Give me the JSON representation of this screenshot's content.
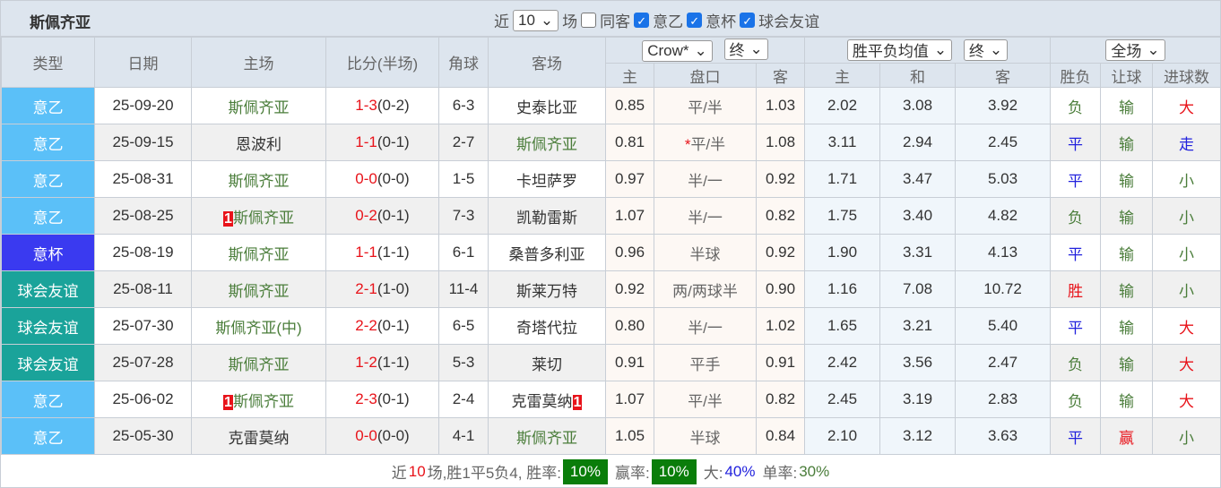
{
  "header": {
    "title": "斯佩齐亚",
    "recent_prefix": "近",
    "recent_value": "10",
    "recent_suffix": "场",
    "same_label": "同客",
    "filters": [
      {
        "label": "意乙",
        "checked": true
      },
      {
        "label": "意杯",
        "checked": true
      },
      {
        "label": "球会友谊",
        "checked": true
      }
    ]
  },
  "columns": {
    "type": "类型",
    "date": "日期",
    "home": "主场",
    "score": "比分(半场)",
    "corner": "角球",
    "away": "客场",
    "handicap_company": "Crow*",
    "handicap_stage": "终",
    "euro_company": "胜平负均值",
    "euro_stage": "终",
    "period": "全场",
    "sub": [
      "主",
      "盘口",
      "客",
      "主",
      "和",
      "客",
      "胜负",
      "让球",
      "进球数"
    ]
  },
  "colors": {
    "意乙": "#5bc0f8",
    "意杯": "#3a3af0",
    "球会友谊": "#1aa39a",
    "win": "#e8131a",
    "draw": "#2222dd",
    "loss": "#4a7d3a"
  },
  "rows": [
    {
      "type": "意乙",
      "date": "25-09-20",
      "home": "斯佩齐亚",
      "home_badge": "",
      "score": "1-3",
      "half": "(0-2)",
      "corner": "6-3",
      "away": "史泰比亚",
      "away_badge": "",
      "h1": "0.85",
      "line": "平/半",
      "h2": "1.03",
      "e1": "2.02",
      "e2": "3.08",
      "e3": "3.92",
      "res": "负",
      "ah": "输",
      "ou": "大"
    },
    {
      "type": "意乙",
      "date": "25-09-15",
      "home": "恩波利",
      "home_badge": "",
      "score": "1-1",
      "half": "(0-1)",
      "corner": "2-7",
      "away": "斯佩齐亚",
      "away_badge": "",
      "h1": "0.81",
      "line": "平/半",
      "star": "*",
      "h2": "1.08",
      "e1": "3.11",
      "e2": "2.94",
      "e3": "2.45",
      "res": "平",
      "ah": "输",
      "ou": "走"
    },
    {
      "type": "意乙",
      "date": "25-08-31",
      "home": "斯佩齐亚",
      "home_badge": "",
      "score": "0-0",
      "half": "(0-0)",
      "corner": "1-5",
      "away": "卡坦萨罗",
      "away_badge": "",
      "h1": "0.97",
      "line": "半/一",
      "h2": "0.92",
      "e1": "1.71",
      "e2": "3.47",
      "e3": "5.03",
      "res": "平",
      "ah": "输",
      "ou": "小"
    },
    {
      "type": "意乙",
      "date": "25-08-25",
      "home": "斯佩齐亚",
      "home_badge": "1",
      "score": "0-2",
      "half": "(0-1)",
      "corner": "7-3",
      "away": "凯勒雷斯",
      "away_badge": "",
      "h1": "1.07",
      "line": "半/一",
      "h2": "0.82",
      "e1": "1.75",
      "e2": "3.40",
      "e3": "4.82",
      "res": "负",
      "ah": "输",
      "ou": "小"
    },
    {
      "type": "意杯",
      "date": "25-08-19",
      "home": "斯佩齐亚",
      "home_badge": "",
      "score": "1-1",
      "half": "(1-1)",
      "corner": "6-1",
      "away": "桑普多利亚",
      "away_badge": "",
      "h1": "0.96",
      "line": "半球",
      "h2": "0.92",
      "e1": "1.90",
      "e2": "3.31",
      "e3": "4.13",
      "res": "平",
      "ah": "输",
      "ou": "小"
    },
    {
      "type": "球会友谊",
      "date": "25-08-11",
      "home": "斯佩齐亚",
      "home_badge": "",
      "score": "2-1",
      "half": "(1-0)",
      "corner": "11-4",
      "away": "斯莱万特",
      "away_badge": "",
      "h1": "0.92",
      "line": "两/两球半",
      "h2": "0.90",
      "e1": "1.16",
      "e2": "7.08",
      "e3": "10.72",
      "res": "胜",
      "ah": "输",
      "ou": "小"
    },
    {
      "type": "球会友谊",
      "date": "25-07-30",
      "home": "斯佩齐亚(中)",
      "home_badge": "",
      "score": "2-2",
      "half": "(0-1)",
      "corner": "6-5",
      "away": "奇塔代拉",
      "away_badge": "",
      "h1": "0.80",
      "line": "半/一",
      "h2": "1.02",
      "e1": "1.65",
      "e2": "3.21",
      "e3": "5.40",
      "res": "平",
      "ah": "输",
      "ou": "大"
    },
    {
      "type": "球会友谊",
      "date": "25-07-28",
      "home": "斯佩齐亚",
      "home_badge": "",
      "score": "1-2",
      "half": "(1-1)",
      "corner": "5-3",
      "away": "莱切",
      "away_badge": "",
      "h1": "0.91",
      "line": "平手",
      "h2": "0.91",
      "e1": "2.42",
      "e2": "3.56",
      "e3": "2.47",
      "res": "负",
      "ah": "输",
      "ou": "大"
    },
    {
      "type": "意乙",
      "date": "25-06-02",
      "home": "斯佩齐亚",
      "home_badge": "1",
      "score": "2-3",
      "half": "(0-1)",
      "corner": "2-4",
      "away": "克雷莫纳",
      "away_badge": "1",
      "h1": "1.07",
      "line": "平/半",
      "h2": "0.82",
      "e1": "2.45",
      "e2": "3.19",
      "e3": "2.83",
      "res": "负",
      "ah": "输",
      "ou": "大"
    },
    {
      "type": "意乙",
      "date": "25-05-30",
      "home": "克雷莫纳",
      "home_badge": "",
      "score": "0-0",
      "half": "(0-0)",
      "corner": "4-1",
      "away": "斯佩齐亚",
      "away_badge": "",
      "h1": "1.05",
      "line": "半球",
      "h2": "0.84",
      "e1": "2.10",
      "e2": "3.12",
      "e3": "3.63",
      "res": "平",
      "ah": "赢",
      "ou": "小"
    }
  ],
  "footer": {
    "p1": "近",
    "count": "10",
    "p2": "场,胜1平5负4, 胜率:",
    "win_rate": "10%",
    "p3": "赢率:",
    "ah_rate": "10%",
    "p4": "大:",
    "over_rate": "40%",
    "p5": "单率:",
    "odd_rate": "30%"
  }
}
